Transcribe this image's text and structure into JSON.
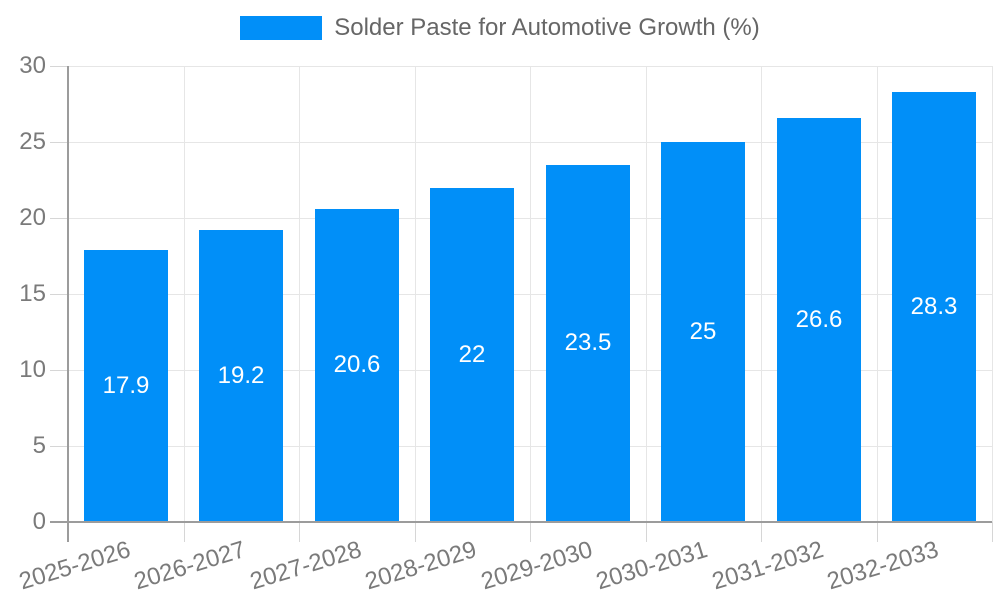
{
  "legend": {
    "label": "Solder Paste for Automotive Growth (%)"
  },
  "colors": {
    "bar": "#018FF8",
    "gridline": "#e6e6e6",
    "axis": "#9c9c9c",
    "tick": "#d6d6d6",
    "tick_label": "#7a7a7a",
    "legend_text": "#666666",
    "value_label": "#ffffff",
    "background": "#ffffff"
  },
  "chart_data": {
    "type": "bar",
    "title": "",
    "series_name": "Solder Paste for Automotive Growth (%)",
    "categories": [
      "2025-2026",
      "2026-2027",
      "2027-2028",
      "2028-2029",
      "2029-2030",
      "2030-2031",
      "2031-2032",
      "2032-2033"
    ],
    "values": [
      17.9,
      19.2,
      20.6,
      22,
      23.5,
      25,
      26.6,
      28.3
    ],
    "xlabel": "",
    "ylabel": "",
    "ylim": [
      0,
      30
    ],
    "yticks": [
      0,
      5,
      10,
      15,
      20,
      25,
      30
    ],
    "grid": true,
    "legend_position": "top",
    "value_label_position": "inside-middle",
    "x_tick_rotation_deg": -17
  }
}
